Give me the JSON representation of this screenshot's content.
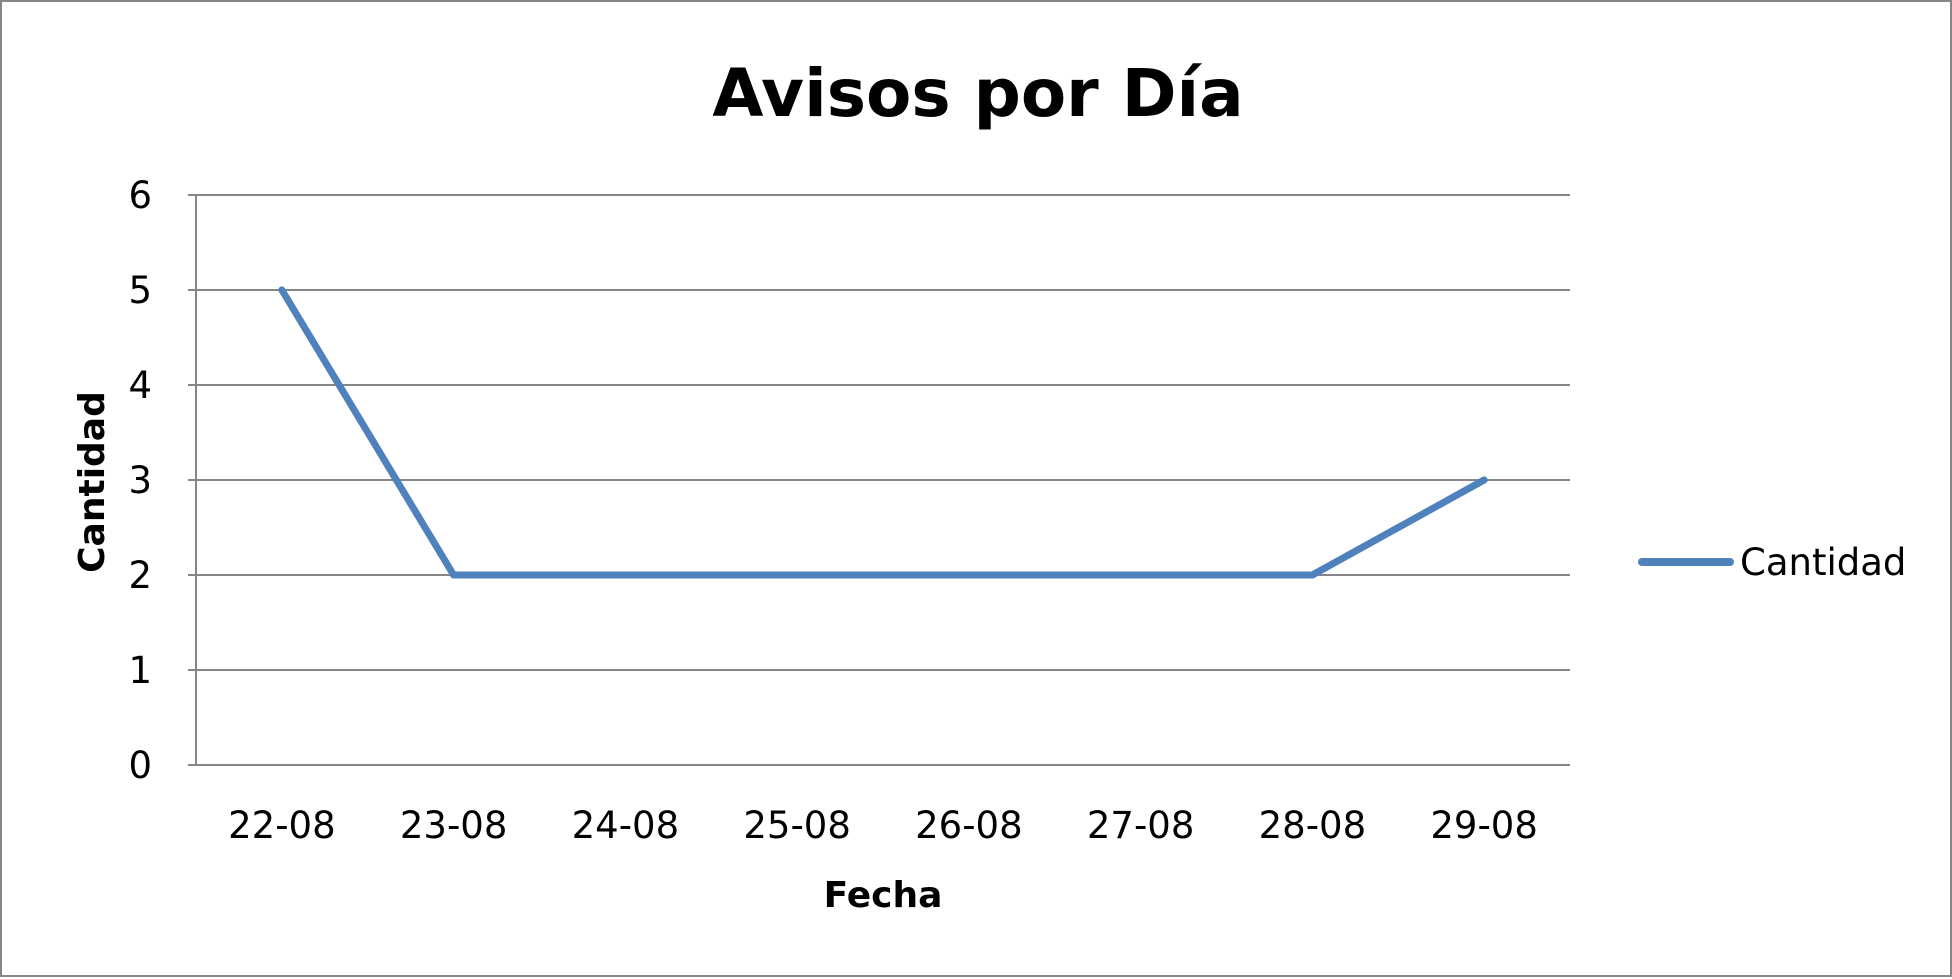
{
  "chart_data": {
    "type": "line",
    "title": "Avisos por Día",
    "xlabel": "Fecha",
    "ylabel": "Cantidad",
    "categories": [
      "22-08",
      "23-08",
      "24-08",
      "25-08",
      "26-08",
      "27-08",
      "28-08",
      "29-08"
    ],
    "series": [
      {
        "name": "Cantidad",
        "values": [
          5,
          2,
          2,
          2,
          2,
          2,
          2,
          3
        ],
        "color": "#4F81BD"
      }
    ],
    "ylim": [
      0,
      6
    ],
    "yticks": [
      "0",
      "1",
      "2",
      "3",
      "4",
      "5",
      "6"
    ],
    "grid": true,
    "legend_position": "right",
    "gridline_color": "#868686"
  }
}
